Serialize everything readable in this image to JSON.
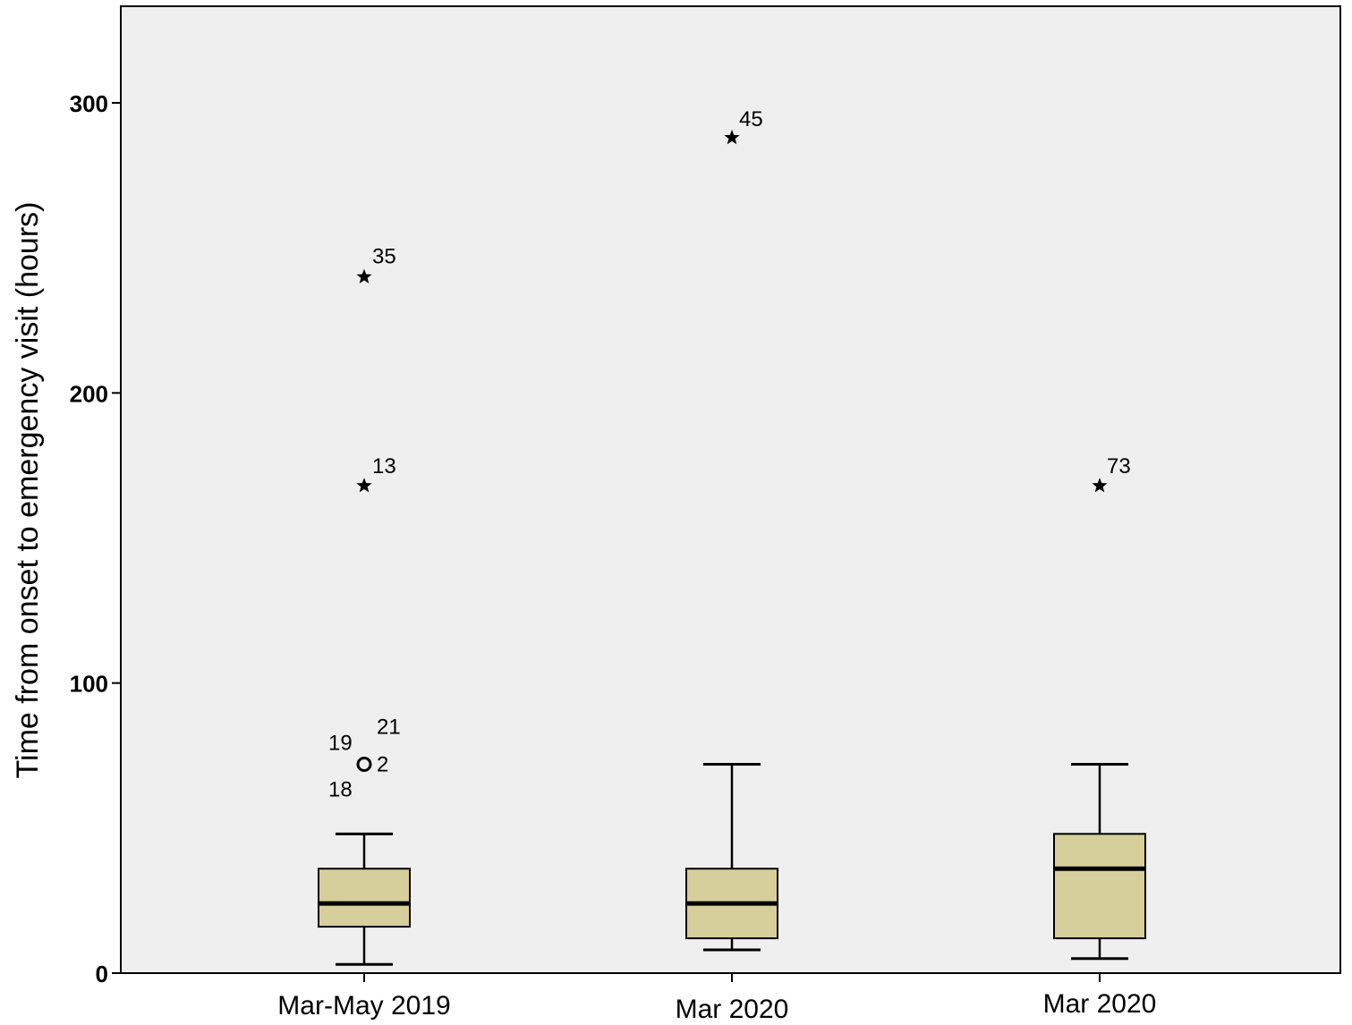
{
  "chart_data": {
    "type": "box",
    "title": "",
    "xlabel": "",
    "ylabel": "Time from onset to emergency visit (hours)",
    "ylim": [
      0,
      330
    ],
    "yticks": [
      0,
      100,
      200,
      300
    ],
    "grid": false,
    "legend": "none",
    "colors": {
      "plot_background": "#efefef",
      "box_fill": "#d6cf9c",
      "stroke": "#000000"
    },
    "categories": [
      "Mar-May 2019",
      "Mar 2020",
      "Mar 2020"
    ],
    "boxes": [
      {
        "category": "Mar-May 2019",
        "whisker_low": 3,
        "q1": 16,
        "median": 24,
        "q3": 36,
        "whisker_high": 48,
        "outliers": [
          {
            "value": 72,
            "marker": "circle",
            "labels": [
              "19",
              "21",
              "2",
              "18"
            ]
          },
          {
            "value": 168,
            "marker": "star",
            "labels": [
              "13"
            ]
          },
          {
            "value": 240,
            "marker": "star",
            "labels": [
              "35"
            ]
          }
        ]
      },
      {
        "category": "Mar 2020",
        "whisker_low": 8,
        "q1": 12,
        "median": 24,
        "q3": 36,
        "whisker_high": 72,
        "outliers": [
          {
            "value": 288,
            "marker": "star",
            "labels": [
              "45"
            ]
          }
        ]
      },
      {
        "category": "Mar 2020",
        "whisker_low": 5,
        "q1": 12,
        "median": 36,
        "q3": 48,
        "whisker_high": 72,
        "outliers": [
          {
            "value": 168,
            "marker": "star",
            "labels": [
              "73"
            ]
          }
        ]
      }
    ]
  }
}
